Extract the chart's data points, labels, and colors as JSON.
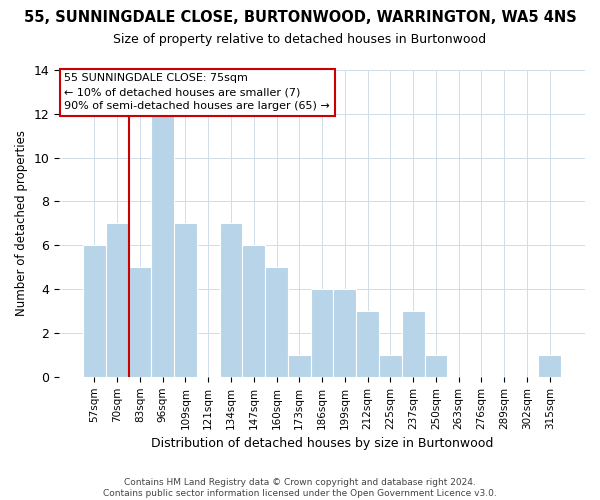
{
  "title": "55, SUNNINGDALE CLOSE, BURTONWOOD, WARRINGTON, WA5 4NS",
  "subtitle": "Size of property relative to detached houses in Burtonwood",
  "xlabel": "Distribution of detached houses by size in Burtonwood",
  "ylabel": "Number of detached properties",
  "footer_line1": "Contains HM Land Registry data © Crown copyright and database right 2024.",
  "footer_line2": "Contains public sector information licensed under the Open Government Licence v3.0.",
  "bar_labels": [
    "57sqm",
    "70sqm",
    "83sqm",
    "96sqm",
    "109sqm",
    "121sqm",
    "134sqm",
    "147sqm",
    "160sqm",
    "173sqm",
    "186sqm",
    "199sqm",
    "212sqm",
    "225sqm",
    "237sqm",
    "250sqm",
    "263sqm",
    "276sqm",
    "289sqm",
    "302sqm",
    "315sqm"
  ],
  "bar_values": [
    6,
    7,
    5,
    12,
    7,
    0,
    7,
    6,
    5,
    1,
    4,
    4,
    3,
    1,
    3,
    1,
    0,
    0,
    0,
    0,
    1
  ],
  "bar_color": "#b8d4e8",
  "vline_color": "#cc0000",
  "vline_x_data": 1.5,
  "ylim": [
    0,
    14
  ],
  "yticks": [
    0,
    2,
    4,
    6,
    8,
    10,
    12,
    14
  ],
  "annotation_title": "55 SUNNINGDALE CLOSE: 75sqm",
  "annotation_line1": "← 10% of detached houses are smaller (7)",
  "annotation_line2": "90% of semi-detached houses are larger (65) →",
  "annotation_box_color": "#ffffff",
  "annotation_border_color": "#cc0000",
  "grid_color": "#d0dde8"
}
